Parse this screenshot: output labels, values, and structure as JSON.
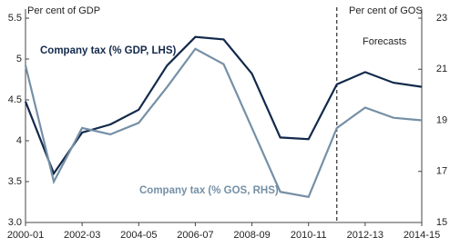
{
  "chart_data": {
    "type": "line",
    "y_label": "Per cent of GDP",
    "y2_label": "Per cent of GOS",
    "annotation": "Forecasts",
    "forecast_line_index": 11,
    "categories": [
      "2000-01",
      null,
      "2002-03",
      null,
      "2004-05",
      null,
      "2006-07",
      null,
      "2008-09",
      null,
      "2010-11",
      null,
      "2012-13",
      null,
      "2014-15"
    ],
    "series": [
      {
        "name": "Company tax (% GDP, LHS)",
        "color": "#13294b",
        "values": [
          4.48,
          3.6,
          4.1,
          4.2,
          4.38,
          4.92,
          5.27,
          5.24,
          4.82,
          4.04,
          4.02,
          4.69,
          4.84,
          4.71,
          4.66
        ]
      },
      {
        "name": "Company tax (% GOS, RHS)",
        "color": "#7590a6",
        "axis": "y2",
        "values": [
          21.15,
          16.6,
          18.7,
          18.45,
          18.9,
          20.3,
          21.8,
          21.2,
          18.7,
          16.2,
          16.0,
          18.7,
          19.5,
          19.1,
          19.0
        ]
      }
    ],
    "ylim": [
      3.0,
      5.5
    ],
    "yticks": [
      {
        "value": 3,
        "label": "3.0"
      },
      3.5,
      4,
      {
        "value": 4,
        "label": "4.0"
      },
      4.5,
      5,
      5.5
    ],
    "y2lim": [
      15,
      23
    ],
    "y2ticks": [
      15,
      17,
      19,
      21,
      23
    ]
  }
}
